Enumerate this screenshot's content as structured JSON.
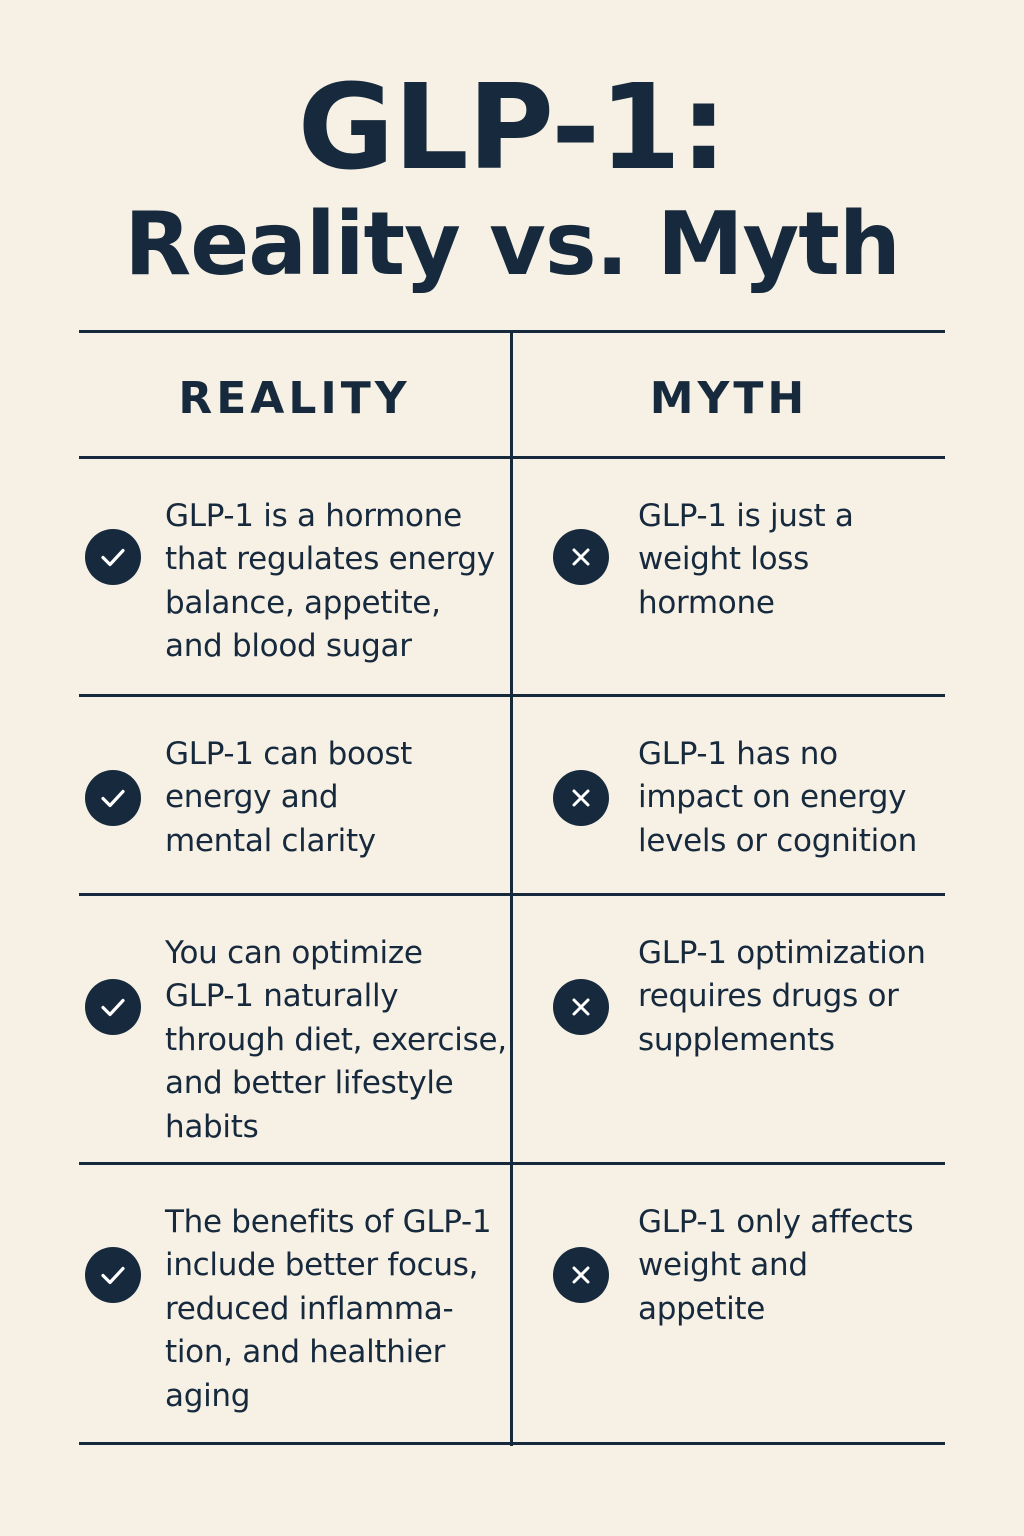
{
  "title": {
    "line1": "GLP-1:",
    "line2": "Reality vs. Myth"
  },
  "headers": {
    "reality": "REALITY",
    "myth": "MYTH"
  },
  "rows": [
    {
      "reality": "GLP-1 is a hormone\nthat regulates energy\nbalance, appetite,\nand blood sugar",
      "myth": "GLP-1 is just a\nweight loss\nhormone"
    },
    {
      "reality": "GLP-1 can boost\nenergy and\nmental clarity",
      "myth": "GLP-1 has no\nimpact on energy\nlevels or cognition"
    },
    {
      "reality": "You can optimize\nGLP-1 naturally\nthrough diet, exercise,\nand better lifestyle\nhabits",
      "myth": "GLP-1 optimization\nrequires drugs or\nsupplements"
    },
    {
      "reality": "The benefits of GLP-1\ninclude better focus,\nreduced inflamma-\ntion, and healthier\naging",
      "myth": "GLP-1 only affects\nweight and\nappetite"
    }
  ],
  "icons": {
    "reality": "checkmark-circle-icon",
    "myth": "x-circle-icon"
  },
  "colors": {
    "background": "#f6f0e5",
    "ink": "#172a3d"
  }
}
